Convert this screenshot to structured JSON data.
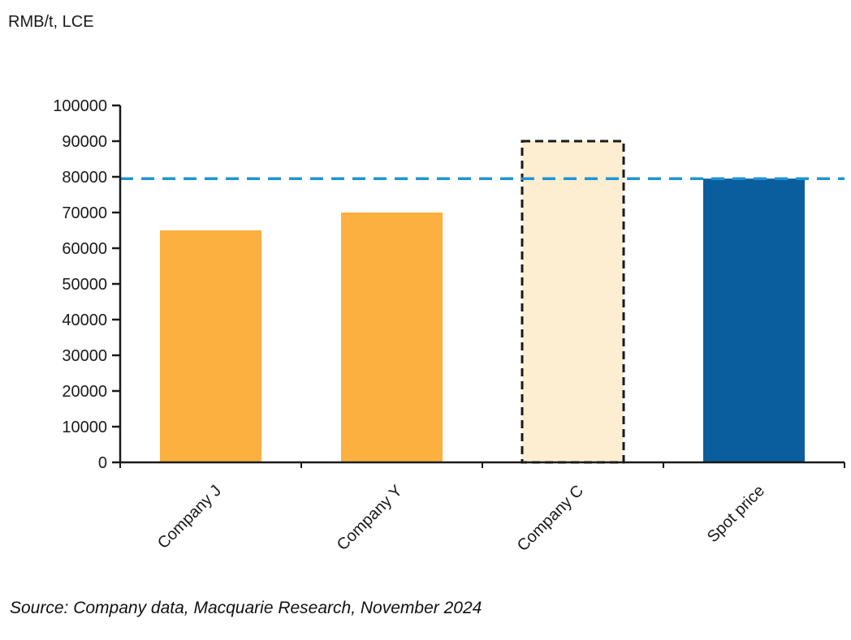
{
  "header": {
    "unit_label": "RMB/t, LCE"
  },
  "footer": {
    "source": "Source: Company data, Macquarie Research, November 2024"
  },
  "chart_data": {
    "type": "bar",
    "categories": [
      "Company J",
      "Company Y",
      "Company C",
      "Spot price"
    ],
    "values": [
      65000,
      70000,
      90000,
      79500
    ],
    "bar_styles": [
      {
        "fill": "#FBB040",
        "stroke": "none",
        "dashed": false
      },
      {
        "fill": "#FBB040",
        "stroke": "none",
        "dashed": false
      },
      {
        "fill": "#FDEED2",
        "stroke": "#1a1a1a",
        "dashed": true
      },
      {
        "fill": "#0A5E9E",
        "stroke": "none",
        "dashed": false
      }
    ],
    "reference_line": {
      "value": 79500,
      "color": "#2095D3",
      "style": "dashed"
    },
    "title": "",
    "xlabel": "",
    "ylabel": "RMB/t, LCE",
    "ylim": [
      0,
      100000
    ],
    "ytick_step": 10000,
    "yticks": [
      0,
      10000,
      20000,
      30000,
      40000,
      50000,
      60000,
      70000,
      80000,
      90000,
      100000
    ],
    "grid": false,
    "legend": false,
    "axis_color": "#1a1a1a"
  }
}
